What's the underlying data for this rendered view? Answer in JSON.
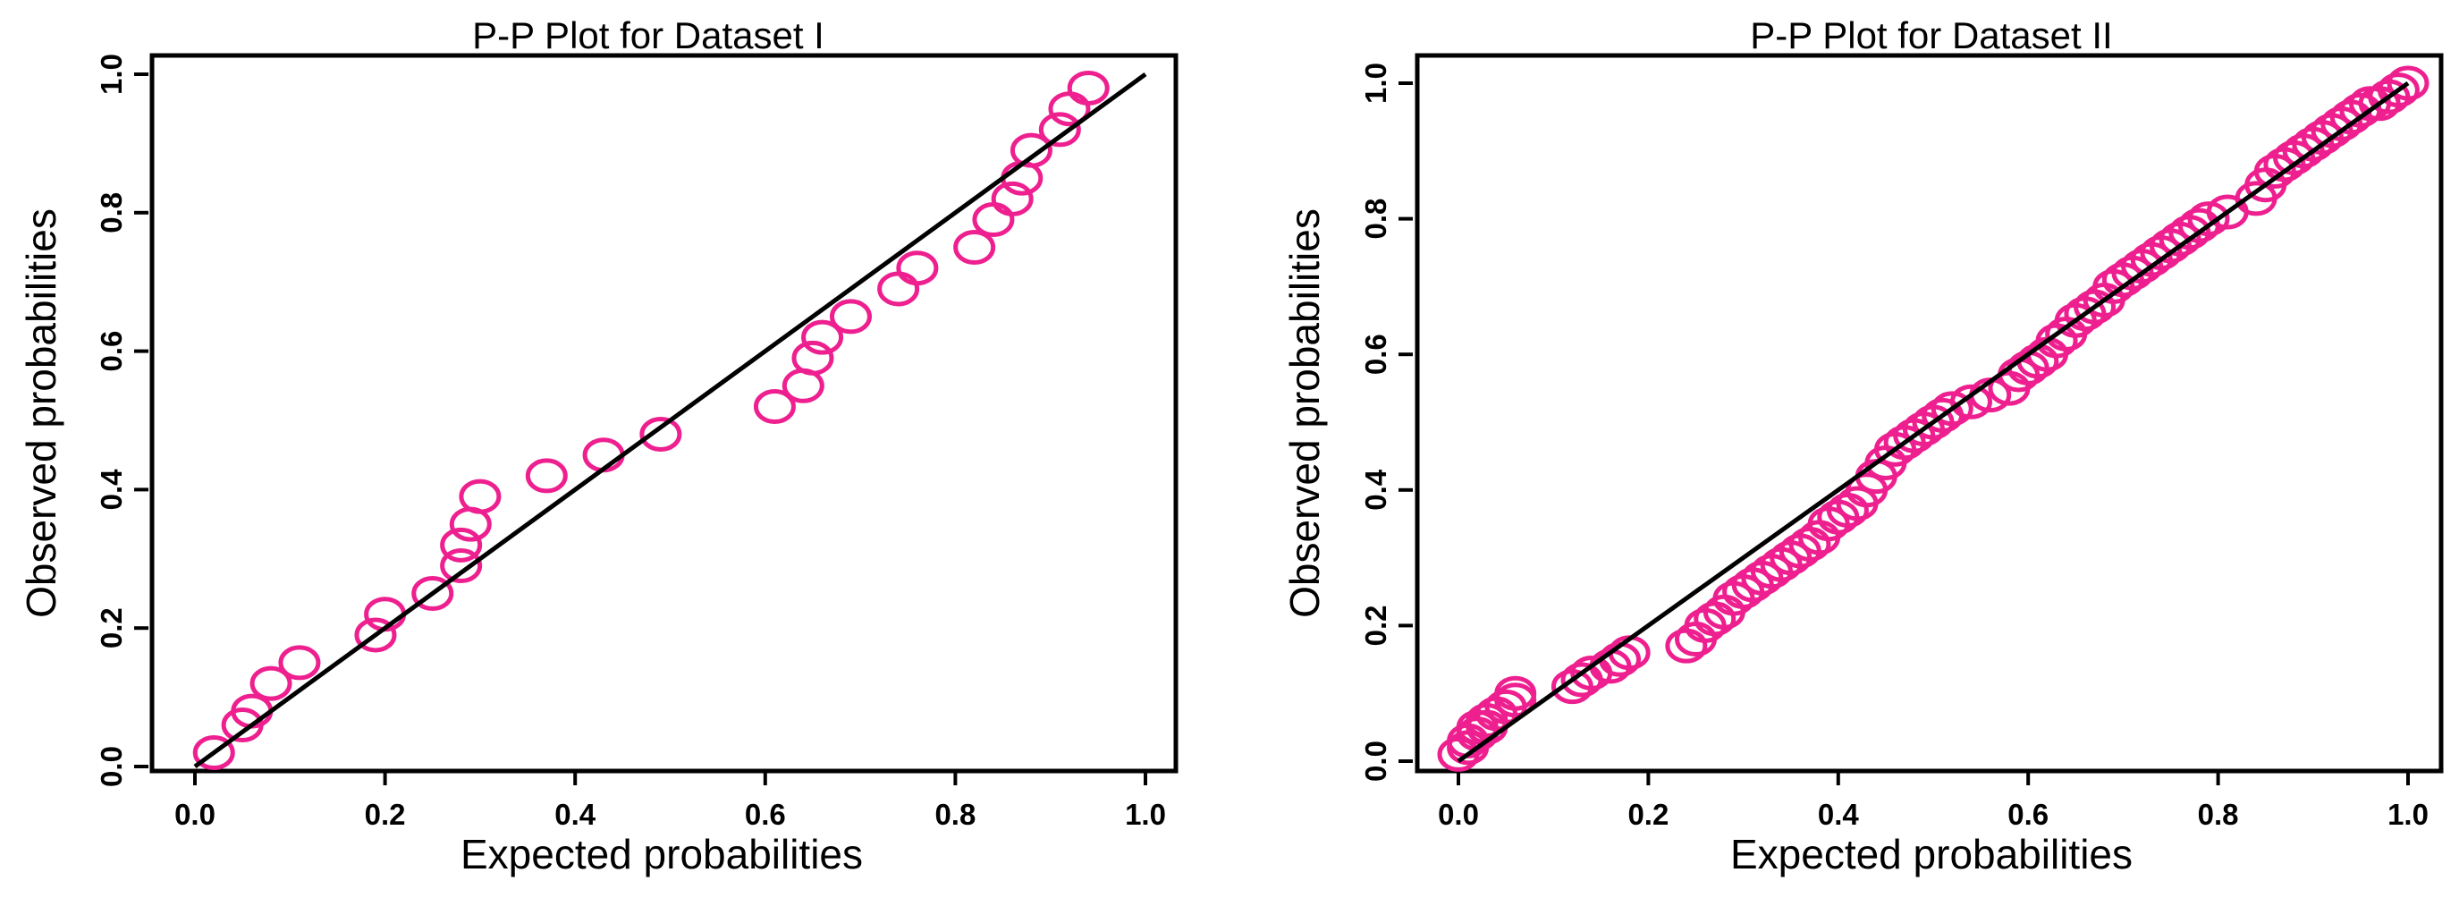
{
  "colors": {
    "point": "#ee1f8f",
    "line": "#000000"
  },
  "chart_data": [
    {
      "type": "scatter",
      "title": "P-P Plot for Dataset I",
      "xlabel": "Expected probabilities",
      "ylabel": "Observed probabilities",
      "xlim": [
        0,
        1
      ],
      "ylim": [
        0,
        1
      ],
      "xticks": [
        "0.0",
        "0.2",
        "0.4",
        "0.6",
        "0.8",
        "1.0"
      ],
      "yticks": [
        "0.0",
        "0.2",
        "0.4",
        "0.6",
        "0.8",
        "1.0"
      ],
      "reference_line": {
        "from": [
          0,
          0
        ],
        "to": [
          1,
          1
        ]
      },
      "series": [
        {
          "name": "Dataset I",
          "x": [
            0.02,
            0.05,
            0.06,
            0.08,
            0.11,
            0.19,
            0.2,
            0.25,
            0.28,
            0.28,
            0.29,
            0.3,
            0.37,
            0.43,
            0.49,
            0.61,
            0.64,
            0.65,
            0.66,
            0.69,
            0.74,
            0.76,
            0.82,
            0.84,
            0.86,
            0.87,
            0.88,
            0.91,
            0.92,
            0.94
          ],
          "y": [
            0.02,
            0.06,
            0.08,
            0.12,
            0.15,
            0.19,
            0.22,
            0.25,
            0.29,
            0.32,
            0.35,
            0.39,
            0.42,
            0.45,
            0.48,
            0.52,
            0.55,
            0.59,
            0.62,
            0.65,
            0.69,
            0.72,
            0.75,
            0.79,
            0.82,
            0.85,
            0.89,
            0.92,
            0.95,
            0.98
          ]
        }
      ]
    },
    {
      "type": "scatter",
      "title": "P-P Plot for Dataset II",
      "xlabel": "Expected probabilities",
      "ylabel": "Observed probabilities",
      "xlim": [
        0,
        1
      ],
      "ylim": [
        0,
        1
      ],
      "xticks": [
        "0.0",
        "0.2",
        "0.4",
        "0.6",
        "0.8",
        "1.0"
      ],
      "yticks": [
        "0.0",
        "0.2",
        "0.4",
        "0.6",
        "0.8",
        "1.0"
      ],
      "reference_line": {
        "from": [
          0,
          0
        ],
        "to": [
          1,
          1
        ]
      },
      "series": [
        {
          "name": "Dataset II",
          "x": [
            0.0,
            0.01,
            0.01,
            0.02,
            0.02,
            0.03,
            0.03,
            0.04,
            0.05,
            0.06,
            0.06,
            0.12,
            0.13,
            0.14,
            0.16,
            0.17,
            0.18,
            0.24,
            0.25,
            0.26,
            0.27,
            0.28,
            0.29,
            0.3,
            0.31,
            0.32,
            0.33,
            0.34,
            0.35,
            0.36,
            0.37,
            0.38,
            0.39,
            0.4,
            0.41,
            0.42,
            0.43,
            0.44,
            0.45,
            0.46,
            0.47,
            0.48,
            0.49,
            0.5,
            0.51,
            0.52,
            0.54,
            0.56,
            0.58,
            0.59,
            0.6,
            0.61,
            0.62,
            0.63,
            0.64,
            0.65,
            0.66,
            0.67,
            0.68,
            0.69,
            0.7,
            0.71,
            0.72,
            0.73,
            0.74,
            0.75,
            0.76,
            0.77,
            0.78,
            0.79,
            0.81,
            0.84,
            0.85,
            0.86,
            0.87,
            0.88,
            0.89,
            0.9,
            0.91,
            0.92,
            0.93,
            0.94,
            0.95,
            0.96,
            0.97,
            0.98,
            0.99,
            1.0
          ],
          "y": [
            0.01,
            0.02,
            0.03,
            0.04,
            0.05,
            0.05,
            0.06,
            0.07,
            0.08,
            0.09,
            0.1,
            0.11,
            0.12,
            0.13,
            0.14,
            0.15,
            0.16,
            0.17,
            0.18,
            0.2,
            0.21,
            0.22,
            0.24,
            0.25,
            0.26,
            0.27,
            0.28,
            0.29,
            0.3,
            0.31,
            0.32,
            0.33,
            0.35,
            0.36,
            0.37,
            0.38,
            0.4,
            0.42,
            0.44,
            0.46,
            0.47,
            0.48,
            0.49,
            0.5,
            0.51,
            0.52,
            0.53,
            0.54,
            0.55,
            0.57,
            0.58,
            0.59,
            0.6,
            0.62,
            0.63,
            0.65,
            0.66,
            0.67,
            0.68,
            0.7,
            0.71,
            0.72,
            0.73,
            0.74,
            0.75,
            0.76,
            0.77,
            0.78,
            0.79,
            0.8,
            0.81,
            0.83,
            0.85,
            0.87,
            0.88,
            0.89,
            0.9,
            0.91,
            0.92,
            0.93,
            0.94,
            0.95,
            0.96,
            0.97,
            0.97,
            0.98,
            0.99,
            1.0
          ]
        }
      ]
    }
  ]
}
